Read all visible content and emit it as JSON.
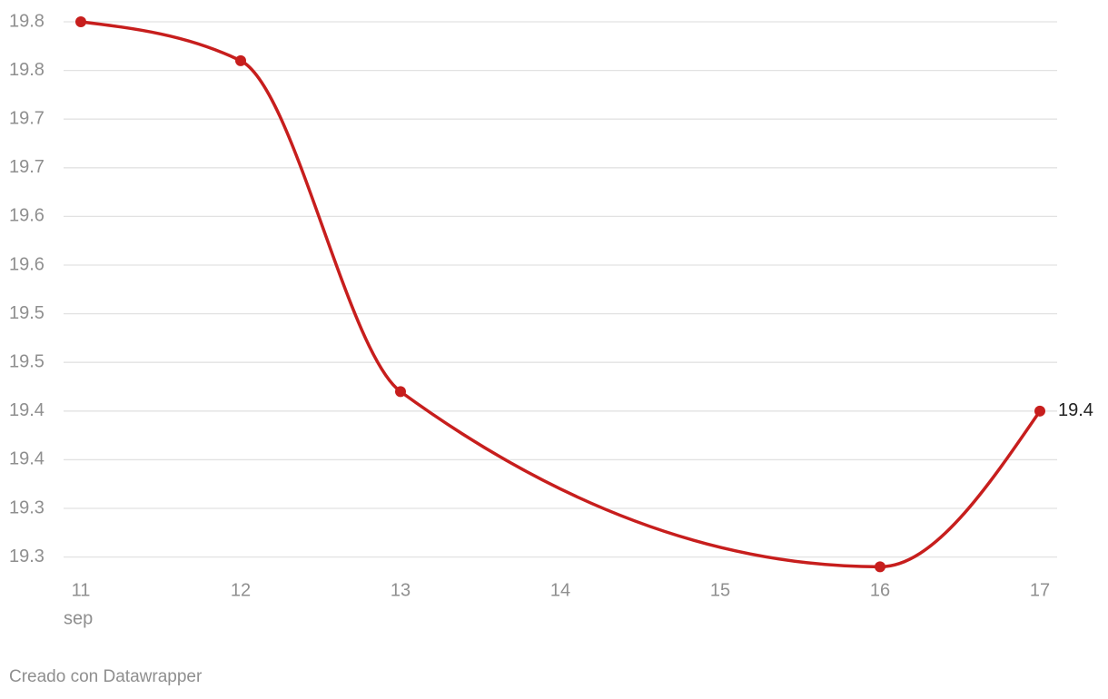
{
  "chart_data": {
    "type": "line",
    "x": [
      11,
      12,
      13,
      16,
      17
    ],
    "x_sublabel": "sep",
    "series": [
      {
        "name": "19.4",
        "color": "#c71e1d",
        "values": [
          19.8,
          19.76,
          19.42,
          19.24,
          19.4
        ]
      }
    ],
    "xlim": [
      11,
      17
    ],
    "xticks": [
      11,
      12,
      13,
      14,
      15,
      16,
      17
    ],
    "ylim": [
      19.235,
      19.8
    ],
    "yticks": [
      {
        "value": 19.25,
        "label": "19.3"
      },
      19.3,
      {
        "value": 19.35,
        "label": "19.4"
      },
      19.4,
      {
        "value": 19.45,
        "label": "19.5"
      },
      19.5,
      {
        "value": 19.55,
        "label": "19.6"
      },
      19.6,
      {
        "value": 19.65,
        "label": "19.7"
      },
      19.7,
      {
        "value": 19.75,
        "label": "19.8"
      },
      19.8
    ],
    "grid": true,
    "footer": "Creado con Datawrapper"
  }
}
